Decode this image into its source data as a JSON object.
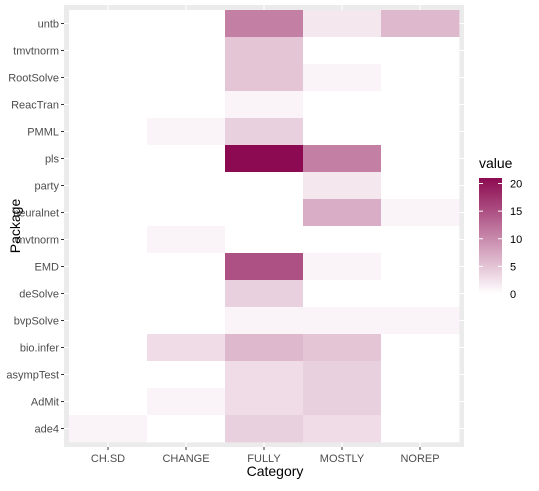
{
  "chart_data": {
    "type": "heatmap",
    "xlabel": "Category",
    "ylabel": "Package",
    "x_categories": [
      "CH.SD",
      "CHANGE",
      "FULLY",
      "MOSTLY",
      "NOREP"
    ],
    "y_categories": [
      "untb",
      "tmvtnorm",
      "RootSolve",
      "ReacTran",
      "PMML",
      "pls",
      "party",
      "neuralnet",
      "mvtnorm",
      "EMD",
      "deSolve",
      "bvpSolve",
      "bio.infer",
      "asympTest",
      "AdMit",
      "ade4"
    ],
    "values": [
      [
        0,
        0,
        11,
        2,
        6
      ],
      [
        0,
        0,
        5,
        0,
        0
      ],
      [
        0,
        0,
        5,
        1,
        0
      ],
      [
        0,
        0,
        1,
        0,
        0
      ],
      [
        0,
        1,
        4,
        0,
        0
      ],
      [
        0,
        0,
        21,
        11,
        0
      ],
      [
        0,
        0,
        0,
        2,
        0
      ],
      [
        0,
        0,
        0,
        7,
        1
      ],
      [
        0,
        1,
        0,
        0,
        0
      ],
      [
        0,
        0,
        15,
        1,
        0
      ],
      [
        0,
        0,
        4,
        0,
        0
      ],
      [
        0,
        0,
        1,
        1,
        1
      ],
      [
        0,
        3,
        6,
        5,
        0
      ],
      [
        0,
        0,
        3,
        4,
        0
      ],
      [
        0,
        1,
        3,
        4,
        0
      ],
      [
        1,
        0,
        4,
        3,
        0
      ]
    ],
    "legend": {
      "title": "value",
      "breaks": [
        0,
        5,
        10,
        15,
        20
      ],
      "range": [
        0,
        21
      ],
      "low_color": "#ffffff",
      "high_color": "#8c0a51",
      "position": "right"
    },
    "grid": true,
    "panel_background": "#ebebeb"
  }
}
